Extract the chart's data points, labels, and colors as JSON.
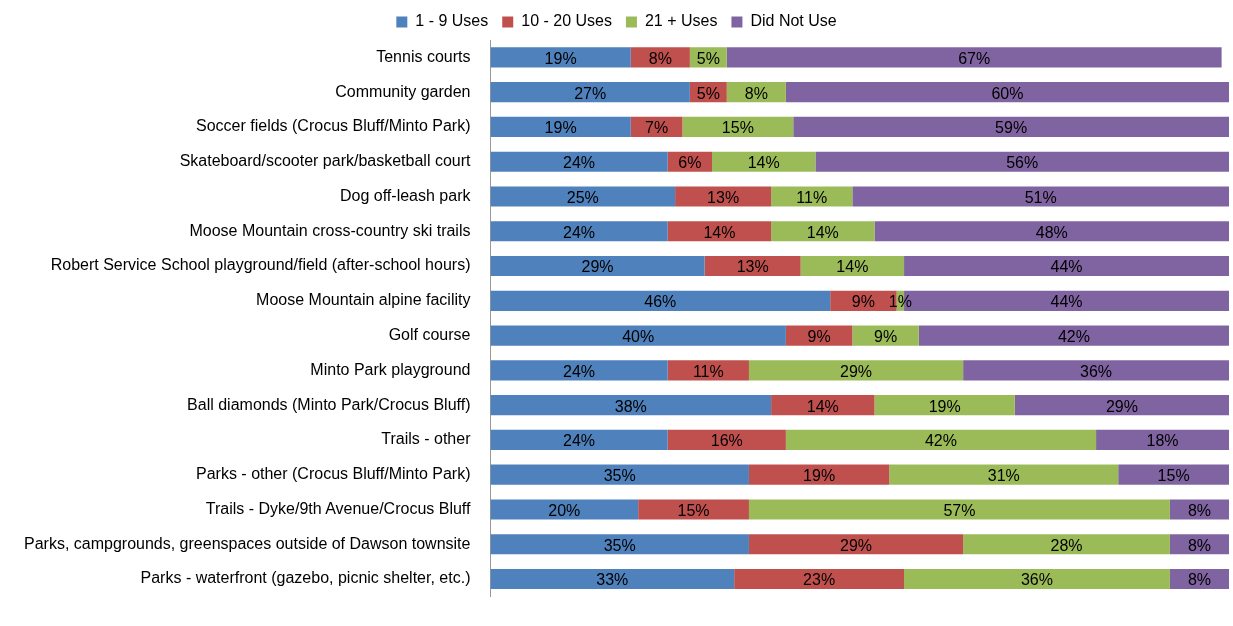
{
  "chart_data": {
    "type": "bar",
    "orientation": "horizontal",
    "stacked": true,
    "legend": "top",
    "tick_labels": "y",
    "categories": [
      "Tennis courts",
      "Community garden",
      "Soccer fields (Crocus Bluff/Minto Park)",
      "Skateboard/scooter park/basketball court",
      "Dog off-leash park",
      "Moose Mountain cross-country ski trails",
      "Robert Service School playground/field (after-school hours)",
      "Moose Mountain alpine facility",
      "Golf course",
      "Minto Park playground",
      "Ball diamonds (Minto Park/Crocus Bluff)",
      "Trails - other",
      "Parks - other (Crocus Bluff/Minto Park)",
      "Trails - Dyke/9th Avenue/Crocus Bluff",
      "Parks, campgrounds, greenspaces outside of Dawson townsite",
      "Parks - waterfront (gazebo, picnic shelter, etc.)"
    ],
    "series": [
      {
        "name": "1 - 9 Uses",
        "color": "#4f81bd",
        "values": [
          19,
          27,
          19,
          24,
          25,
          24,
          29,
          46,
          40,
          24,
          38,
          24,
          35,
          20,
          35,
          33
        ],
        "value_labels": [
          "19%",
          "27%",
          "19%",
          "24%",
          "25%",
          "24%",
          "29%",
          "46%",
          "40%",
          "24%",
          "38%",
          "24%",
          "35%",
          "20%",
          "35%",
          "33%"
        ]
      },
      {
        "name": "10 - 20 Uses",
        "color": "#c0504d",
        "values": [
          8,
          5,
          7,
          6,
          13,
          14,
          13,
          9,
          9,
          11,
          14,
          16,
          19,
          15,
          29,
          23
        ],
        "value_labels": [
          "8%",
          "5%",
          "7%",
          "6%",
          "13%",
          "14%",
          "13%",
          "9%",
          "9%",
          "11%",
          "14%",
          "16%",
          "19%",
          "15%",
          "29%",
          "23%"
        ]
      },
      {
        "name": "21 + Uses",
        "color": "#9bbb59",
        "values": [
          5,
          8,
          15,
          14,
          11,
          14,
          14,
          1,
          9,
          29,
          19,
          42,
          31,
          57,
          28,
          36
        ],
        "value_labels": [
          "5%",
          "8%",
          "15%",
          "14%",
          "11%",
          "14%",
          "14%",
          "1%",
          "9%",
          "29%",
          "19%",
          "42%",
          "31%",
          "57%",
          "28%",
          "36%"
        ]
      },
      {
        "name": "Did Not Use",
        "color": "#8064a2",
        "values": [
          67,
          60,
          59,
          56,
          51,
          48,
          44,
          44,
          42,
          36,
          29,
          18,
          15,
          8,
          8,
          8
        ],
        "value_labels": [
          "67%",
          "60%",
          "59%",
          "56%",
          "51%",
          "48%",
          "44%",
          "44%",
          "42%",
          "36%",
          "29%",
          "18%",
          "15%",
          "8%",
          "8%",
          "8%"
        ]
      }
    ]
  }
}
